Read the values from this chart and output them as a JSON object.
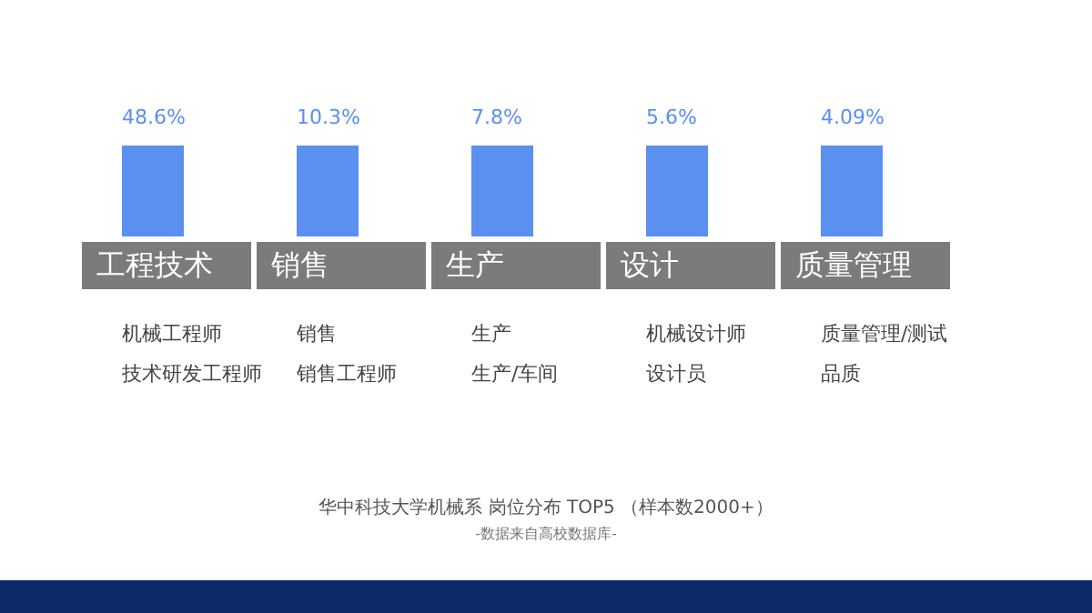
{
  "chart_data": {
    "type": "other",
    "title": "华中科技大学机械系  岗位分布 TOP5 （样本数2000+）",
    "categories": [
      "工程技术",
      "销售",
      "生产",
      "设计",
      "质量管理"
    ],
    "values": [
      48.6,
      10.3,
      7.8,
      5.6,
      4.09
    ],
    "value_labels": [
      "48.6%",
      "10.3%",
      "7.8%",
      "5.6%",
      "4.09%"
    ],
    "color": "#5b8ff0",
    "annotations": [
      {
        "text": "机械工程师",
        "x": "工程技术"
      },
      {
        "text": "技术研发工程师",
        "x": "工程技术"
      },
      {
        "text": "销售",
        "x": "销售"
      },
      {
        "text": "销售工程师",
        "x": "销售"
      },
      {
        "text": "生产",
        "x": "生产"
      },
      {
        "text": "生产/车间",
        "x": "生产"
      },
      {
        "text": "机械设计师",
        "x": "设计"
      },
      {
        "text": "设计员",
        "x": "设计"
      },
      {
        "text": "质量管理/测试",
        "x": "质量管理"
      },
      {
        "text": "品质",
        "x": "质量管理"
      },
      "-数据来自高校数据库-"
    ]
  }
}
